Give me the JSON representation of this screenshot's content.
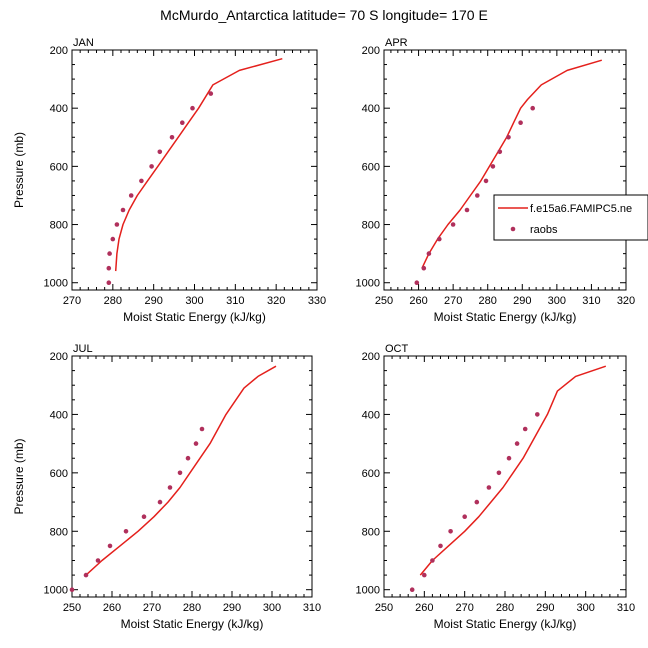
{
  "figure": {
    "title": "McMurdo_Antarctica  latitude= 70 S longitude= 170 E",
    "colors": {
      "model": "#e4201c",
      "raobs": "#b0305c"
    }
  },
  "chart_data": [
    {
      "type": "scatter",
      "panel_label": "JAN",
      "xlabel": "Moist Static Energy (kJ/kg)",
      "ylabel": "Pressure (mb)",
      "xlim": [
        270,
        330
      ],
      "ylim": [
        1025,
        200
      ],
      "xticks": [
        270,
        280,
        290,
        300,
        310,
        320,
        330
      ],
      "yticks": [
        200,
        400,
        600,
        800,
        1000
      ],
      "series": [
        {
          "kind": "line",
          "color": "#e4201c",
          "x": [
            280.7,
            281.0,
            281.5,
            282.5,
            284.0,
            286.0,
            288.5,
            291.0,
            293.5,
            296.0,
            298.5,
            301.0,
            304.5,
            311.0,
            321.5
          ],
          "y": [
            960,
            900,
            850,
            800,
            750,
            700,
            650,
            600,
            550,
            500,
            450,
            400,
            320,
            270,
            230
          ]
        },
        {
          "kind": "points",
          "color": "#b0305c",
          "x": [
            279.0,
            279.0,
            279.2,
            280.0,
            281.0,
            282.5,
            284.5,
            287.0,
            289.5,
            291.5,
            294.5,
            297.0,
            299.5,
            304.0
          ],
          "y": [
            1000,
            950,
            900,
            850,
            800,
            750,
            700,
            650,
            600,
            550,
            500,
            450,
            400,
            350
          ]
        }
      ]
    },
    {
      "type": "scatter",
      "panel_label": "APR",
      "xlabel": "Moist Static Energy (kJ/kg)",
      "ylabel": "",
      "xlim": [
        250,
        320
      ],
      "ylim": [
        1025,
        200
      ],
      "xticks": [
        250,
        260,
        270,
        280,
        290,
        300,
        310,
        320
      ],
      "yticks": [
        200,
        400,
        600,
        800,
        1000
      ],
      "legend": {
        "placement": "right",
        "entries": [
          "f.e15a6.FAMIPC5.ne",
          "raobs"
        ]
      },
      "series": [
        {
          "kind": "line",
          "name": "f.e15a6.FAMIPC5.ne",
          "color": "#e4201c",
          "x": [
            261.0,
            263.0,
            265.5,
            268.5,
            272.0,
            275.0,
            278.0,
            280.5,
            283.0,
            285.5,
            287.5,
            289.5,
            291.5,
            295.5,
            303.0,
            313.0
          ],
          "y": [
            950,
            900,
            850,
            800,
            750,
            700,
            650,
            600,
            550,
            500,
            450,
            400,
            370,
            320,
            270,
            235
          ]
        },
        {
          "kind": "points",
          "name": "raobs",
          "color": "#b0305c",
          "x": [
            259.5,
            261.5,
            263.0,
            266.0,
            270.0,
            274.0,
            277.0,
            279.5,
            281.5,
            283.5,
            286.0,
            289.5,
            293.0
          ],
          "y": [
            1000,
            950,
            900,
            850,
            800,
            750,
            700,
            650,
            600,
            550,
            500,
            450,
            400
          ]
        }
      ]
    },
    {
      "type": "scatter",
      "panel_label": "JUL",
      "xlabel": "Moist Static Energy (kJ/kg)",
      "ylabel": "Pressure (mb)",
      "xlim": [
        250,
        310
      ],
      "ylim": [
        1025,
        200
      ],
      "xticks": [
        250,
        260,
        270,
        280,
        290,
        300,
        310
      ],
      "yticks": [
        200,
        400,
        600,
        800,
        1000
      ],
      "series": [
        {
          "kind": "line",
          "color": "#e4201c",
          "x": [
            253.5,
            257.5,
            262.0,
            266.5,
            270.5,
            274.0,
            277.0,
            279.5,
            282.0,
            284.5,
            286.5,
            288.5,
            290.5,
            293.0,
            296.5,
            301.0
          ],
          "y": [
            950,
            900,
            850,
            800,
            750,
            700,
            650,
            600,
            550,
            500,
            450,
            400,
            360,
            310,
            270,
            235
          ]
        },
        {
          "kind": "points",
          "color": "#b0305c",
          "x": [
            250.0,
            253.5,
            256.5,
            259.5,
            263.5,
            268.0,
            272.0,
            274.5,
            277.0,
            279.0,
            281.0,
            282.5
          ],
          "y": [
            1000,
            950,
            900,
            850,
            800,
            750,
            700,
            650,
            600,
            550,
            500,
            450
          ]
        }
      ]
    },
    {
      "type": "scatter",
      "panel_label": "OCT",
      "xlabel": "Moist Static Energy (kJ/kg)",
      "ylabel": "",
      "xlim": [
        250,
        310
      ],
      "ylim": [
        1025,
        200
      ],
      "xticks": [
        250,
        260,
        270,
        280,
        290,
        300,
        310
      ],
      "yticks": [
        200,
        400,
        600,
        800,
        1000
      ],
      "series": [
        {
          "kind": "line",
          "color": "#e4201c",
          "x": [
            259.0,
            262.0,
            266.0,
            270.0,
            273.5,
            276.5,
            279.5,
            282.0,
            284.5,
            286.5,
            288.5,
            290.5,
            293.0,
            297.5,
            305.0
          ],
          "y": [
            950,
            900,
            850,
            800,
            750,
            700,
            650,
            600,
            550,
            500,
            450,
            400,
            320,
            270,
            235
          ]
        },
        {
          "kind": "points",
          "color": "#b0305c",
          "x": [
            257.0,
            260.0,
            262.0,
            264.0,
            266.5,
            270.0,
            273.0,
            276.0,
            278.5,
            281.0,
            283.0,
            285.0,
            288.0
          ],
          "y": [
            1000,
            950,
            900,
            850,
            800,
            750,
            700,
            650,
            600,
            550,
            500,
            450,
            400
          ]
        }
      ]
    }
  ]
}
